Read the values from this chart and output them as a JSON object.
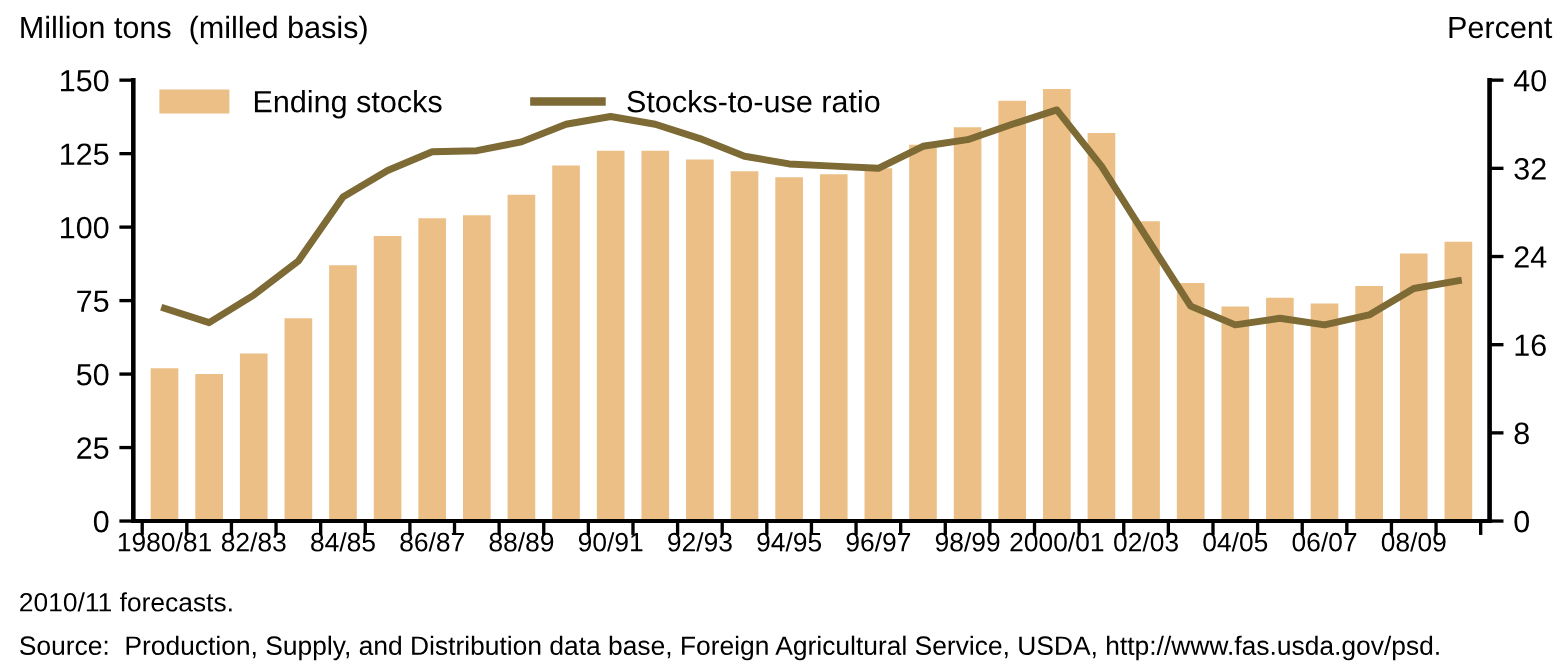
{
  "chart_data": {
    "type": "bar",
    "ylabel": "Million tons  (milled basis)",
    "y2label": "Percent",
    "categories": [
      "1980/81",
      null,
      "82/83",
      null,
      "84/85",
      null,
      "86/87",
      null,
      "88/89",
      null,
      "90/91",
      null,
      "92/93",
      null,
      "94/95",
      null,
      "96/97",
      null,
      "98/99",
      null,
      "2000/01",
      null,
      "02/03",
      null,
      "04/05",
      null,
      "06/07",
      null,
      "08/09",
      null
    ],
    "series": [
      {
        "name": "Ending stocks",
        "color": "#ebbf86",
        "values": [
          52,
          50,
          57,
          69,
          87,
          97,
          103,
          104,
          111,
          121,
          126,
          126,
          123,
          119,
          117,
          118,
          120,
          128,
          134,
          143,
          147,
          132,
          102,
          81,
          73,
          76,
          74,
          80,
          91,
          95
        ]
      },
      {
        "name": "Stocks-to-use ratio",
        "type": "line",
        "axis": "y2",
        "color": "#7d6a34",
        "values": [
          19.3,
          18.0,
          20.5,
          23.6,
          29.4,
          31.8,
          33.5,
          33.6,
          34.4,
          36.0,
          36.7,
          36.0,
          34.7,
          33.1,
          32.4,
          32.2,
          32.0,
          34.0,
          34.6,
          36.0,
          37.3,
          32.2,
          25.8,
          19.5,
          17.8,
          18.4,
          17.8,
          18.7,
          21.1,
          21.8
        ]
      }
    ],
    "ylim": [
      0,
      150
    ],
    "yticks": [
      0,
      25,
      50,
      75,
      100,
      125,
      150
    ],
    "y2lim": [
      0,
      40
    ],
    "y2ticks": [
      0,
      8,
      16,
      24,
      32,
      40
    ],
    "legend": "top left",
    "grid": false,
    "marker": "none",
    "line_style": "solid",
    "annotations": [
      "2010/11 forecasts.",
      "Source:  Production, Supply, and Distribution data base, Foreign Agricultural Service, USDA, http://www.fas.usda.gov/psd."
    ]
  }
}
